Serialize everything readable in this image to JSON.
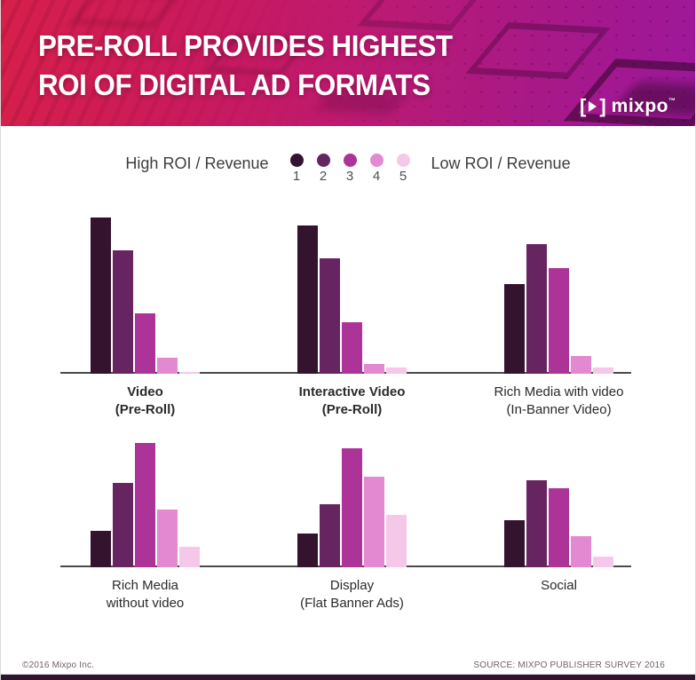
{
  "banner": {
    "title_line1": "PRE-ROLL PROVIDES HIGHEST",
    "title_line2": "ROI OF DIGITAL AD FORMATS",
    "logo_text": "mixpo",
    "logo_tm": "™",
    "gradient_colors": [
      "#d6204b",
      "#c01a6e",
      "#9c189b"
    ]
  },
  "legend": {
    "left_label": "High ROI / Revenue",
    "right_label": "Low ROI / Revenue",
    "ranks": [
      "1",
      "2",
      "3",
      "4",
      "5"
    ],
    "colors": [
      "#33132d",
      "#662560",
      "#ac3397",
      "#e289d1",
      "#f5c8e9"
    ]
  },
  "chart_data": {
    "type": "bar",
    "title": "PRE-ROLL PROVIDES HIGHEST ROI OF DIGITAL AD FORMATS",
    "legend_scale": {
      "1": "High ROI / Revenue",
      "5": "Low ROI / Revenue"
    },
    "categories_per_group": [
      "1",
      "2",
      "3",
      "4",
      "5"
    ],
    "units": "relative bar height, % of row plot height (source chart shows no numeric y-axis)",
    "grid": false,
    "groups": [
      {
        "id": "video-pre-roll",
        "label_lines": [
          "Video",
          "(Pre-Roll)"
        ],
        "bold": true,
        "values": [
          98,
          77,
          38,
          10,
          1
        ]
      },
      {
        "id": "interactive-video-pre-roll",
        "label_lines": [
          "Interactive Video",
          "(Pre-Roll)"
        ],
        "bold": true,
        "values": [
          93,
          72,
          32,
          6,
          4
        ]
      },
      {
        "id": "rich-media-with-video",
        "label_lines": [
          "Rich Media with video",
          "(In-Banner Video)"
        ],
        "bold": false,
        "values": [
          56,
          81,
          66,
          11,
          4
        ]
      },
      {
        "id": "rich-media-without-video",
        "label_lines": [
          "Rich Media",
          "without video"
        ],
        "bold": false,
        "values": [
          27,
          63,
          93,
          43,
          15
        ]
      },
      {
        "id": "display-flat-banner-ads",
        "label_lines": [
          "Display",
          "(Flat Banner Ads)"
        ],
        "bold": false,
        "values": [
          25,
          47,
          89,
          68,
          39
        ]
      },
      {
        "id": "social",
        "label_lines": [
          "Social"
        ],
        "bold": false,
        "values": [
          35,
          65,
          59,
          23,
          8
        ]
      }
    ],
    "axis_color": "#4b4b4b"
  },
  "footer": {
    "copyright": "©2016 Mixpo Inc.",
    "source": "SOURCE: MIXPO PUBLISHER SURVEY 2016",
    "bottom_bar_color": "#2e1430"
  }
}
